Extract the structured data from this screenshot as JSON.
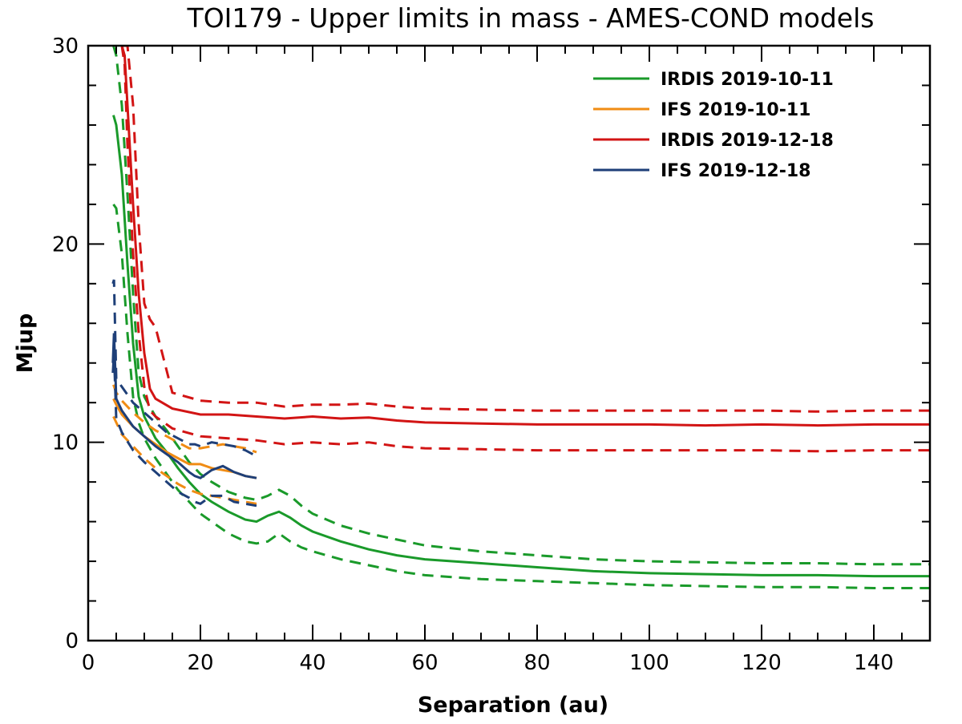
{
  "chart_data": {
    "type": "line",
    "title": "TOI179 - Upper limits in mass - AMES-COND models",
    "xlabel": "Separation (au)",
    "ylabel": "Mjup",
    "xlim": [
      0,
      150
    ],
    "ylim": [
      0,
      30
    ],
    "x_ticks": [
      0,
      20,
      40,
      60,
      80,
      100,
      120,
      140
    ],
    "y_ticks": [
      0,
      10,
      20,
      30
    ],
    "x_minor_step": 5,
    "y_minor_step": 2,
    "legend_position": "top-right",
    "series": [
      {
        "name": "IRDIS 2019-10-11",
        "color": "#1a9a2a",
        "x": [
          4.5,
          5,
          6,
          7,
          8,
          9,
          10,
          12,
          14,
          16,
          18,
          20,
          22,
          25,
          28,
          30,
          32,
          34,
          36,
          38,
          40,
          45,
          50,
          55,
          60,
          70,
          80,
          90,
          100,
          110,
          120,
          130,
          140,
          150
        ],
        "y": [
          26.5,
          26,
          23.5,
          19,
          15,
          12.3,
          11.3,
          10.2,
          9.5,
          8.7,
          8,
          7.4,
          7,
          6.5,
          6.1,
          6.0,
          6.3,
          6.5,
          6.2,
          5.8,
          5.5,
          5.0,
          4.6,
          4.3,
          4.1,
          3.9,
          3.7,
          3.5,
          3.4,
          3.35,
          3.3,
          3.3,
          3.25,
          3.25
        ],
        "lower": [
          22,
          21.8,
          19.5,
          15.5,
          12.3,
          11.0,
          10.2,
          9.2,
          8.4,
          7.6,
          7.0,
          6.4,
          6.0,
          5.4,
          5.0,
          4.9,
          5.0,
          5.4,
          5.0,
          4.7,
          4.5,
          4.1,
          3.8,
          3.5,
          3.3,
          3.1,
          3.0,
          2.9,
          2.8,
          2.75,
          2.7,
          2.7,
          2.65,
          2.65
        ],
        "upper": [
          30,
          29.5,
          27,
          22.5,
          17.5,
          13.5,
          12.3,
          11.3,
          10.6,
          9.8,
          9.0,
          8.4,
          8.0,
          7.5,
          7.2,
          7.1,
          7.3,
          7.6,
          7.3,
          6.8,
          6.4,
          5.8,
          5.4,
          5.1,
          4.8,
          4.5,
          4.3,
          4.1,
          4.0,
          3.95,
          3.9,
          3.9,
          3.85,
          3.85
        ]
      },
      {
        "name": "IFS 2019-10-11",
        "color": "#f08c14",
        "x": [
          4.5,
          5,
          6,
          8,
          10,
          12,
          14,
          16,
          18,
          20,
          22,
          24,
          26,
          28,
          30
        ],
        "y": [
          12.2,
          11.9,
          11.4,
          10.8,
          10.3,
          9.9,
          9.5,
          9.2,
          8.9,
          8.9,
          8.7,
          8.6,
          8.5,
          8.3,
          8.2
        ],
        "lower": [
          11.3,
          11.0,
          10.4,
          9.8,
          9.2,
          8.7,
          8.3,
          7.9,
          7.6,
          7.4,
          7.3,
          7.2,
          7.1,
          7.0,
          6.9
        ],
        "upper": [
          12.9,
          12.5,
          12.1,
          11.5,
          11.0,
          10.6,
          10.3,
          10.0,
          9.7,
          9.7,
          9.8,
          9.9,
          9.8,
          9.7,
          9.5
        ]
      },
      {
        "name": "IRDIS 2019-12-18",
        "color": "#d21414",
        "x": [
          6,
          6.5,
          7,
          8,
          9,
          10,
          11,
          12,
          15,
          20,
          25,
          30,
          35,
          40,
          45,
          50,
          55,
          60,
          70,
          80,
          90,
          100,
          110,
          120,
          130,
          140,
          150
        ],
        "y": [
          30,
          29.5,
          27,
          22,
          17.5,
          14.5,
          12.7,
          12.2,
          11.7,
          11.4,
          11.4,
          11.3,
          11.2,
          11.3,
          11.2,
          11.25,
          11.1,
          11.0,
          10.95,
          10.9,
          10.9,
          10.9,
          10.85,
          10.9,
          10.85,
          10.9,
          10.9
        ],
        "lower": [
          30,
          29,
          25,
          19.5,
          15.5,
          12.8,
          11.6,
          11.3,
          10.7,
          10.3,
          10.2,
          10.1,
          9.9,
          10.0,
          9.9,
          10.0,
          9.8,
          9.7,
          9.65,
          9.6,
          9.6,
          9.6,
          9.6,
          9.6,
          9.55,
          9.6,
          9.6
        ],
        "upper": [
          30,
          30,
          30,
          27,
          21,
          17,
          16.2,
          15.8,
          12.5,
          12.1,
          12.0,
          12.0,
          11.8,
          11.9,
          11.9,
          11.95,
          11.8,
          11.7,
          11.65,
          11.6,
          11.6,
          11.6,
          11.6,
          11.6,
          11.55,
          11.6,
          11.6
        ]
      },
      {
        "name": "IFS 2019-12-18",
        "color": "#1e3f78",
        "x": [
          4.4,
          4.6,
          5,
          6,
          8,
          10,
          12,
          14,
          16,
          18,
          19,
          20,
          22,
          24,
          26,
          28,
          30
        ],
        "y": [
          14,
          15.5,
          12.2,
          11.6,
          10.8,
          10.3,
          9.8,
          9.4,
          9.0,
          8.5,
          8.3,
          8.2,
          8.6,
          8.8,
          8.5,
          8.3,
          8.2
        ],
        "lower": [
          13.5,
          14.5,
          11.2,
          10.5,
          9.6,
          9.0,
          8.5,
          8.0,
          7.5,
          7.2,
          7.0,
          6.9,
          7.3,
          7.3,
          7.0,
          6.9,
          6.8
        ],
        "upper": [
          18,
          18.2,
          13.2,
          12.8,
          12.0,
          11.5,
          11.0,
          10.5,
          10.2,
          9.9,
          9.9,
          9.8,
          10.0,
          9.9,
          9.8,
          9.6,
          9.3
        ]
      }
    ]
  }
}
